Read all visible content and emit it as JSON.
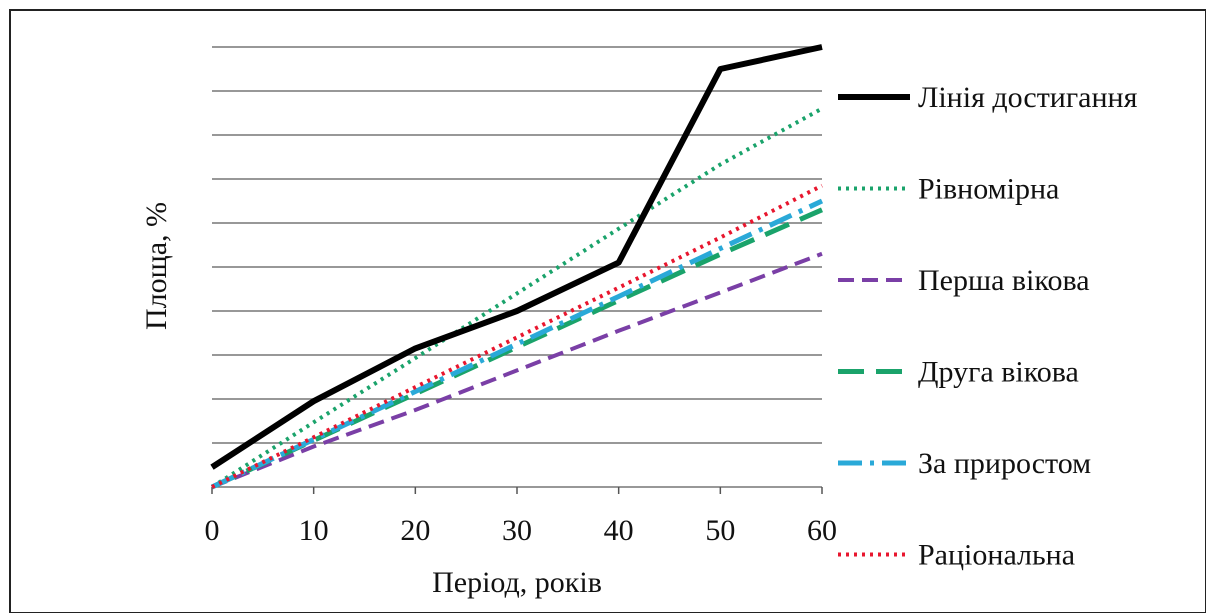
{
  "chart_data": {
    "type": "line",
    "xlabel": "Період, років",
    "ylabel": "Площа, %",
    "x": [
      0,
      10,
      20,
      30,
      40,
      50,
      60
    ],
    "xlim": [
      0,
      60
    ],
    "ylim": [
      0,
      100
    ],
    "y_tick_labels_shown": false,
    "grid": "horizontal",
    "legend_position": "right",
    "series": [
      {
        "name": "Лінія достигання",
        "color": "#000000",
        "dash": "solid",
        "values": [
          4.5,
          19.5,
          31.5,
          40,
          51,
          95,
          100
        ]
      },
      {
        "name": "Рівномірна",
        "color": "#1aa36b",
        "dash": "dotted",
        "values": [
          0,
          14.7,
          29.3,
          44,
          58.7,
          73.3,
          86
        ]
      },
      {
        "name": "Перша вікова",
        "color": "#7a3fa6",
        "dash": "dashed",
        "values": [
          0,
          9.2,
          17.5,
          26.5,
          35.5,
          44.2,
          53
        ]
      },
      {
        "name": "Друга вікова",
        "color": "#1aa36b",
        "dash": "longdash",
        "values": [
          0,
          10.6,
          21.2,
          31.8,
          42.4,
          52.9,
          63
        ]
      },
      {
        "name": "За приростом",
        "color": "#2aa9d8",
        "dash": "dashdot",
        "values": [
          0,
          10.8,
          21.7,
          32.5,
          43.3,
          54.2,
          65
        ]
      },
      {
        "name": "Раціональна",
        "color": "#e8162e",
        "dash": "dotted",
        "values": [
          0,
          11.3,
          22.7,
          34,
          45.3,
          56.7,
          68.5
        ]
      }
    ]
  }
}
